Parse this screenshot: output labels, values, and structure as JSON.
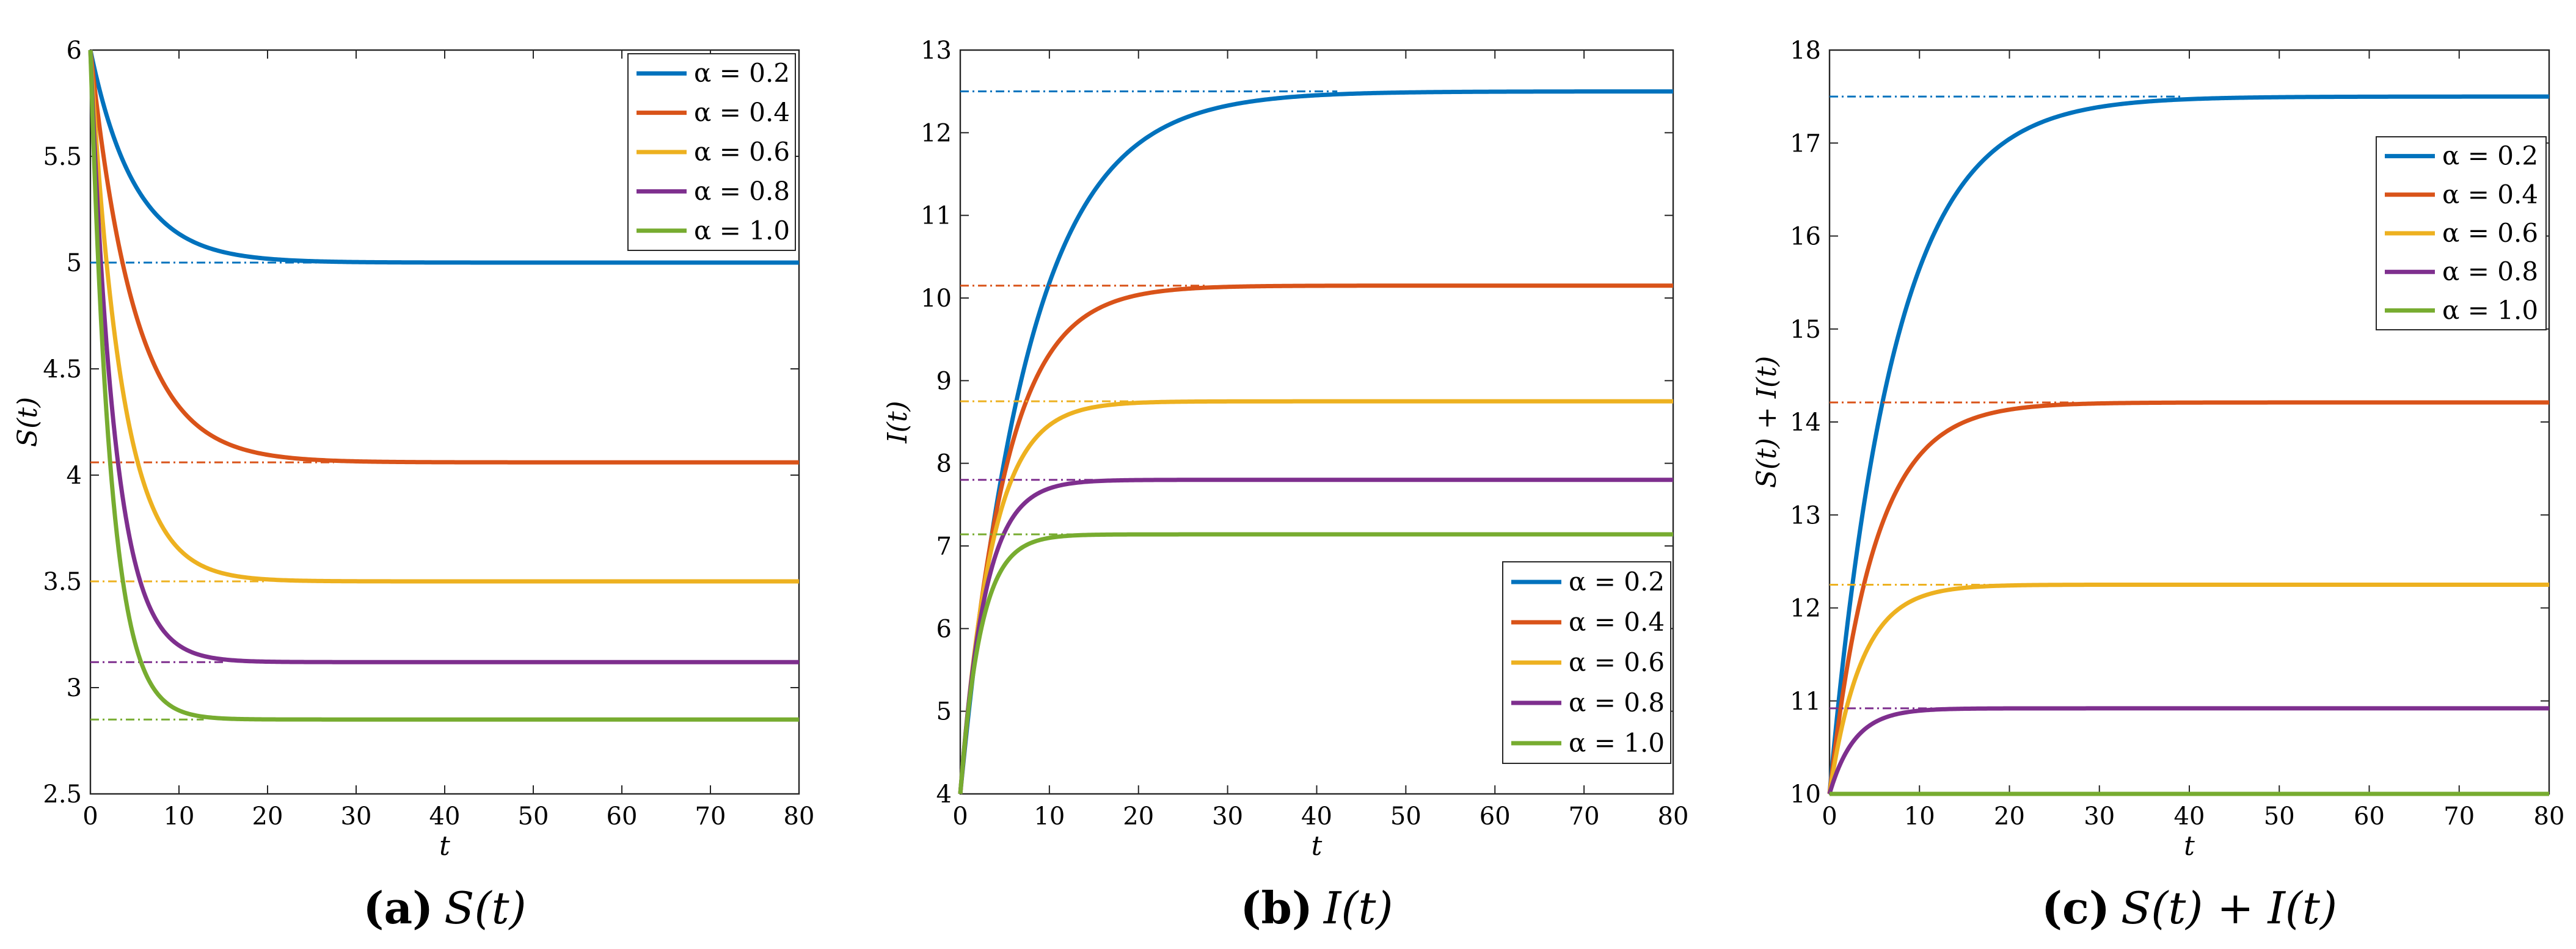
{
  "chart_data": [
    {
      "type": "line",
      "panel_label": "(a)",
      "title": "S(t)",
      "xlabel": "t",
      "ylabel": "S(t)",
      "xlim": [
        0,
        80
      ],
      "ylim": [
        2.5,
        6
      ],
      "xticks": [
        0,
        10,
        20,
        30,
        40,
        50,
        60,
        70,
        80
      ],
      "yticks": [
        2.5,
        3,
        3.5,
        4,
        4.5,
        5,
        5.5,
        6
      ],
      "x_tick_labels": [
        "0",
        "10",
        "20",
        "30",
        "40",
        "50",
        "60",
        "70",
        "80"
      ],
      "y_tick_labels": [
        "2.5",
        "3",
        "3.5",
        "4",
        "4.5",
        "5",
        "5.5",
        "6"
      ],
      "legend_position": "top-right",
      "series": [
        {
          "name": "α = 0.2",
          "color": "#0072BD",
          "start": 6,
          "steady_state": 5.0,
          "rate": 0.2
        },
        {
          "name": "α = 0.4",
          "color": "#D95319",
          "start": 6,
          "steady_state": 4.06,
          "rate": 0.2
        },
        {
          "name": "α = 0.6",
          "color": "#EDB120",
          "start": 6,
          "steady_state": 3.5,
          "rate": 0.28
        },
        {
          "name": "α = 0.8",
          "color": "#7E2F8E",
          "start": 6,
          "steady_state": 3.12,
          "rate": 0.36
        },
        {
          "name": "α = 1.0",
          "color": "#77AC30",
          "start": 6,
          "steady_state": 2.85,
          "rate": 0.43
        }
      ]
    },
    {
      "type": "line",
      "panel_label": "(b)",
      "title": "I(t)",
      "xlabel": "t",
      "ylabel": "I(t)",
      "xlim": [
        0,
        80
      ],
      "ylim": [
        4,
        13
      ],
      "xticks": [
        0,
        10,
        20,
        30,
        40,
        50,
        60,
        70,
        80
      ],
      "yticks": [
        4,
        5,
        6,
        7,
        8,
        9,
        10,
        11,
        12,
        13
      ],
      "x_tick_labels": [
        "0",
        "10",
        "20",
        "30",
        "40",
        "50",
        "60",
        "70",
        "80"
      ],
      "y_tick_labels": [
        "4",
        "5",
        "6",
        "7",
        "8",
        "9",
        "10",
        "11",
        "12",
        "13"
      ],
      "legend_position": "bottom-right",
      "series": [
        {
          "name": "α = 0.2",
          "color": "#0072BD",
          "start": 4,
          "steady_state": 12.5,
          "rate": 0.13
        },
        {
          "name": "α = 0.4",
          "color": "#D95319",
          "start": 4,
          "steady_state": 10.15,
          "rate": 0.2
        },
        {
          "name": "α = 0.6",
          "color": "#EDB120",
          "start": 4,
          "steady_state": 8.75,
          "rate": 0.28
        },
        {
          "name": "α = 0.8",
          "color": "#7E2F8E",
          "start": 4,
          "steady_state": 7.8,
          "rate": 0.36
        },
        {
          "name": "α = 1.0",
          "color": "#77AC30",
          "start": 4,
          "steady_state": 7.14,
          "rate": 0.43
        }
      ]
    },
    {
      "type": "line",
      "panel_label": "(c)",
      "title": "S(t) + I(t)",
      "xlabel": "t",
      "ylabel": "S(t) + I(t)",
      "xlim": [
        0,
        80
      ],
      "ylim": [
        10,
        18
      ],
      "xticks": [
        0,
        10,
        20,
        30,
        40,
        50,
        60,
        70,
        80
      ],
      "yticks": [
        10,
        11,
        12,
        13,
        14,
        15,
        16,
        17,
        18
      ],
      "x_tick_labels": [
        "0",
        "10",
        "20",
        "30",
        "40",
        "50",
        "60",
        "70",
        "80"
      ],
      "y_tick_labels": [
        "10",
        "11",
        "12",
        "13",
        "14",
        "15",
        "16",
        "17",
        "18"
      ],
      "legend_position": "top-right",
      "series": [
        {
          "name": "α = 0.2",
          "color": "#0072BD",
          "start": 10,
          "steady_state": 17.5,
          "rate": 0.14
        },
        {
          "name": "α = 0.4",
          "color": "#D95319",
          "start": 10,
          "steady_state": 14.21,
          "rate": 0.2
        },
        {
          "name": "α = 0.6",
          "color": "#EDB120",
          "start": 10,
          "steady_state": 12.25,
          "rate": 0.28
        },
        {
          "name": "α = 0.8",
          "color": "#7E2F8E",
          "start": 10,
          "steady_state": 10.92,
          "rate": 0.36
        },
        {
          "name": "α = 1.0",
          "color": "#77AC30",
          "start": 10,
          "steady_state": 10.0,
          "rate": 0.43
        }
      ]
    }
  ]
}
